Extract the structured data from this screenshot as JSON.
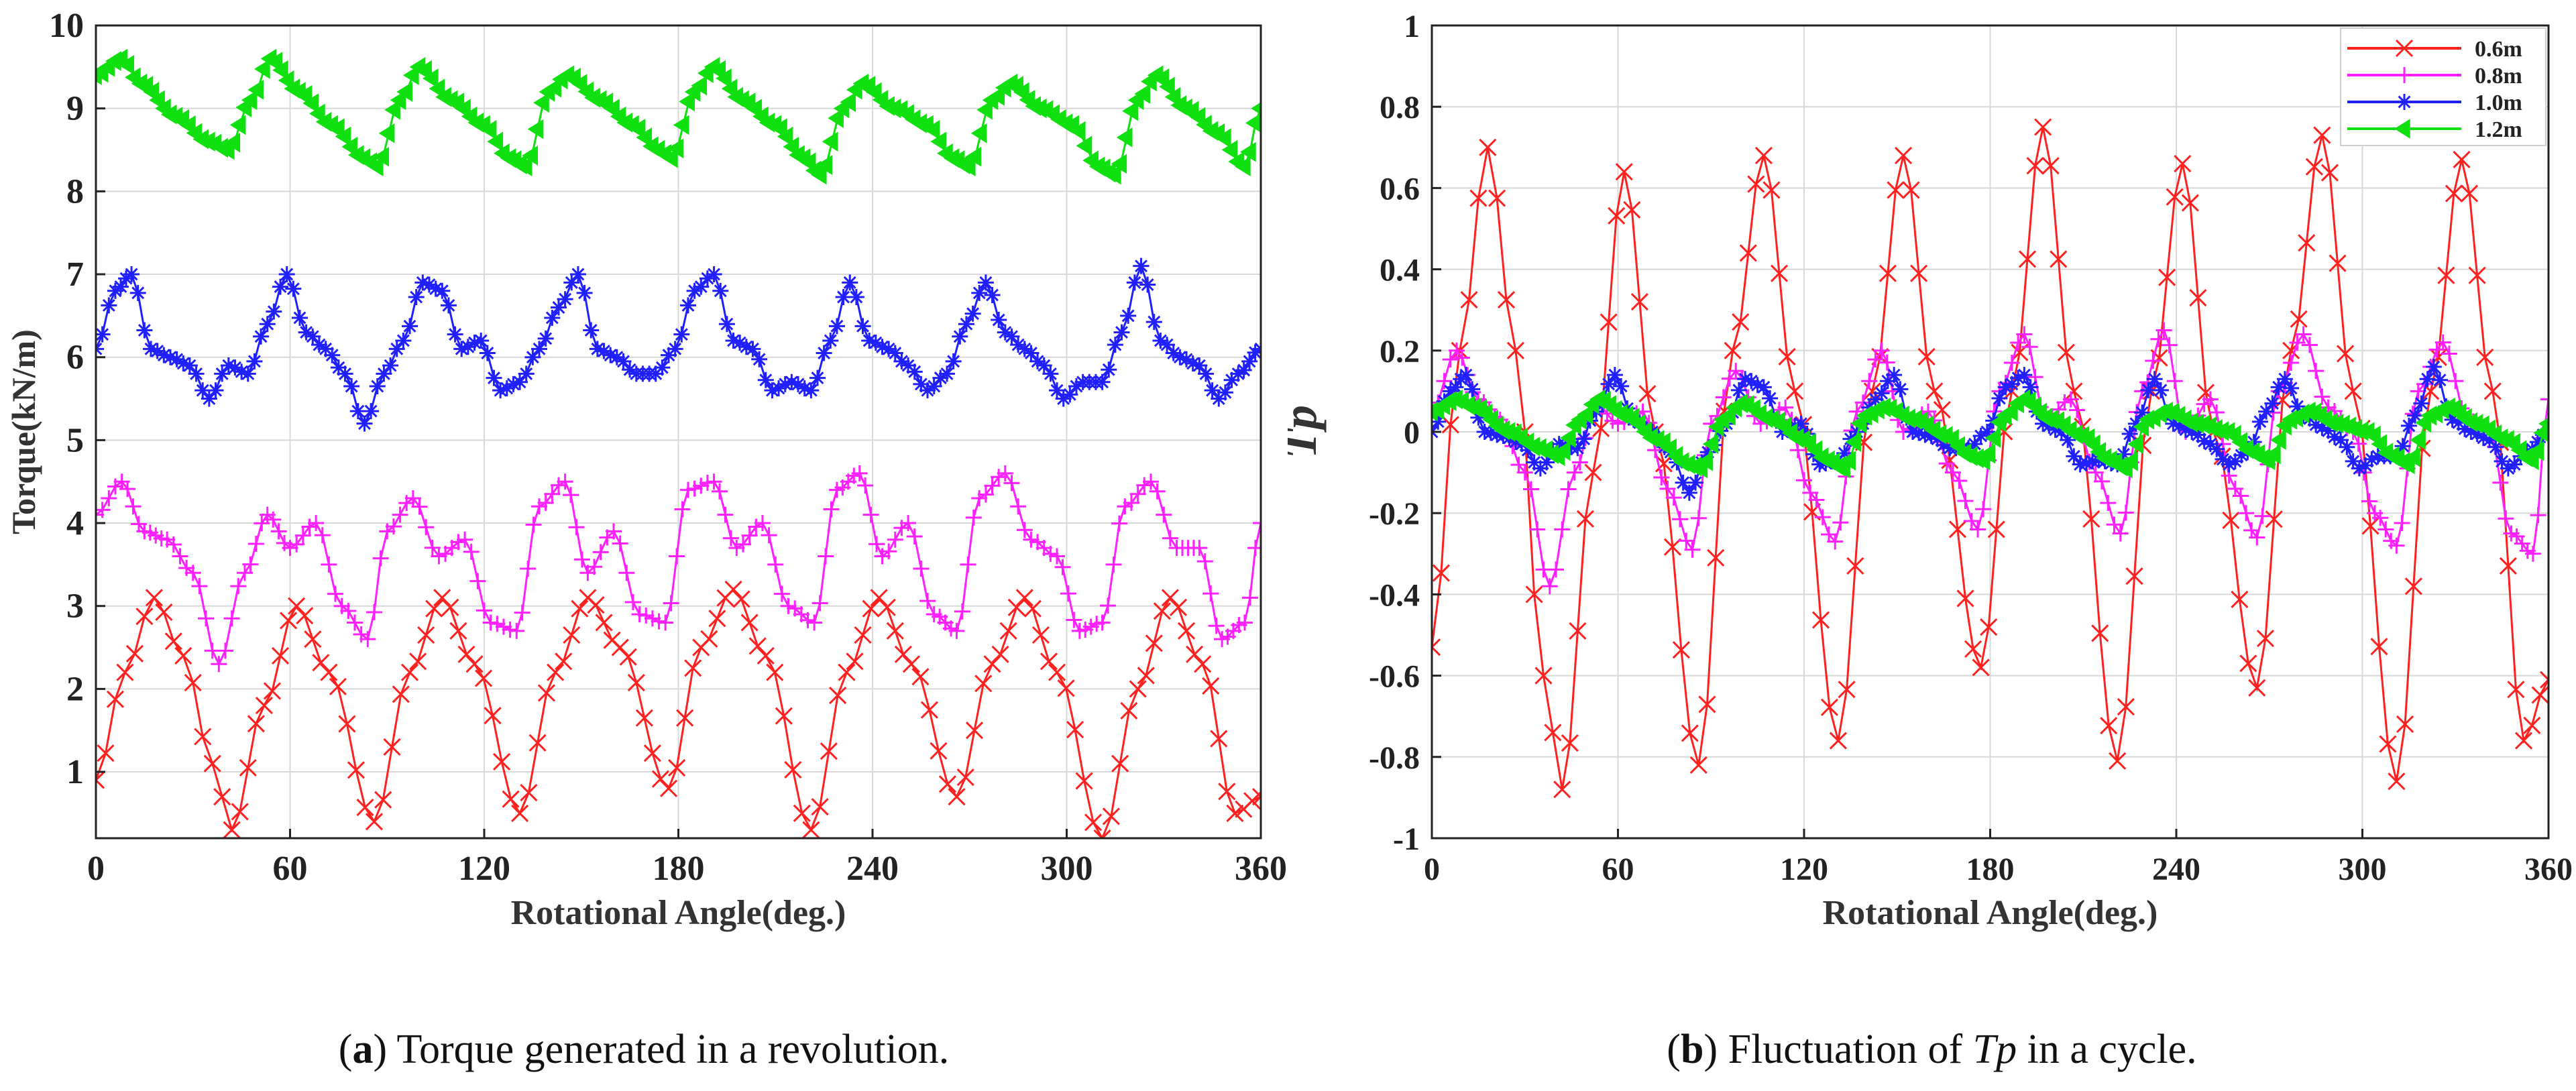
{
  "chart_data": [
    {
      "panel": "a",
      "type": "line",
      "title": "",
      "xlabel": "Rotational Angle(deg.)",
      "ylabel": "Torque(kN/m)",
      "xlim": [
        0,
        360
      ],
      "ylim": [
        0.2,
        10
      ],
      "xticks": [
        0,
        60,
        120,
        180,
        240,
        300,
        360
      ],
      "xtick_labels": [
        "0",
        "60",
        "120",
        "180",
        "240",
        "300",
        "360"
      ],
      "yticks": [
        1,
        2,
        3,
        4,
        5,
        6,
        7,
        8,
        9,
        10
      ],
      "ytick_labels": [
        "1",
        "2",
        "3",
        "4",
        "5",
        "6",
        "7",
        "8",
        "9",
        "10"
      ],
      "grid": true,
      "legend": "none",
      "series": [
        {
          "color": "#ff2020",
          "marker": "x",
          "x": [
            0,
            9,
            18,
            27,
            36,
            42,
            52,
            62,
            72,
            86,
            97,
            107,
            117,
            131,
            142,
            152,
            162,
            177,
            187,
            197,
            207,
            221,
            232,
            242,
            252,
            266,
            277,
            287,
            297,
            311,
            322,
            332,
            342,
            352,
            360
          ],
          "y": [
            0.9,
            2.2,
            3.1,
            2.4,
            1.1,
            0.3,
            1.8,
            3.0,
            2.2,
            0.4,
            2.2,
            3.1,
            2.3,
            0.5,
            2.2,
            3.1,
            2.5,
            0.8,
            2.5,
            3.2,
            2.4,
            0.3,
            2.2,
            3.1,
            2.3,
            0.7,
            2.3,
            3.1,
            2.2,
            0.2,
            2.0,
            3.1,
            2.3,
            0.5,
            0.7
          ]
        },
        {
          "color": "#ff20ff",
          "marker": "+",
          "x": [
            0,
            8,
            15,
            22,
            30,
            38,
            46,
            53,
            60,
            68,
            76,
            84,
            90,
            98,
            106,
            114,
            122,
            130,
            137,
            145,
            152,
            160,
            168,
            176,
            183,
            191,
            198,
            206,
            214,
            222,
            229,
            236,
            243,
            251,
            259,
            266,
            273,
            281,
            289,
            297,
            304,
            311,
            318,
            326,
            334,
            341,
            348,
            355,
            360
          ],
          "y": [
            4.1,
            4.5,
            3.9,
            3.8,
            3.4,
            2.3,
            3.4,
            4.1,
            3.7,
            4.0,
            3.0,
            2.6,
            3.9,
            4.3,
            3.6,
            3.8,
            2.8,
            2.7,
            4.2,
            4.5,
            3.4,
            3.9,
            2.9,
            2.8,
            4.4,
            4.5,
            3.7,
            4.0,
            3.0,
            2.8,
            4.4,
            4.6,
            3.6,
            4.0,
            2.9,
            2.7,
            4.3,
            4.6,
            3.8,
            3.6,
            2.7,
            2.8,
            4.2,
            4.5,
            3.7,
            3.7,
            2.6,
            2.8,
            4.0
          ]
        },
        {
          "color": "#2020ff",
          "marker": "*",
          "x": [
            0,
            6,
            11,
            17,
            23,
            29,
            35,
            41,
            47,
            53,
            59,
            65,
            71,
            77,
            83,
            89,
            95,
            101,
            107,
            113,
            119,
            125,
            131,
            137,
            143,
            149,
            155,
            161,
            167,
            173,
            179,
            185,
            191,
            197,
            203,
            209,
            215,
            221,
            227,
            233,
            239,
            245,
            251,
            257,
            263,
            269,
            275,
            281,
            287,
            293,
            299,
            305,
            311,
            317,
            323,
            329,
            335,
            341,
            347,
            353,
            360
          ],
          "y": [
            6.1,
            6.8,
            7.0,
            6.1,
            6.0,
            5.9,
            5.5,
            5.9,
            5.8,
            6.4,
            7.0,
            6.3,
            6.1,
            5.8,
            5.2,
            5.8,
            6.2,
            6.9,
            6.8,
            6.1,
            6.2,
            5.6,
            5.7,
            6.1,
            6.6,
            7.0,
            6.1,
            6.0,
            5.8,
            5.8,
            6.1,
            6.8,
            7.0,
            6.2,
            6.1,
            5.6,
            5.7,
            5.6,
            6.2,
            6.9,
            6.2,
            6.1,
            5.9,
            5.6,
            5.8,
            6.4,
            6.9,
            6.3,
            6.1,
            5.9,
            5.5,
            5.7,
            5.7,
            6.3,
            7.1,
            6.2,
            6.0,
            5.9,
            5.5,
            5.8,
            6.1
          ]
        },
        {
          "color": "#10e010",
          "marker": "triangle",
          "x": [
            0,
            8,
            14,
            25,
            35,
            41,
            48,
            54,
            63,
            73,
            83,
            87,
            94,
            100,
            110,
            120,
            128,
            133,
            140,
            146,
            156,
            166,
            174,
            178,
            185,
            191,
            200,
            210,
            219,
            224,
            231,
            237,
            247,
            257,
            265,
            270,
            277,
            283,
            292,
            302,
            310,
            315,
            322,
            328,
            337,
            347,
            355,
            360
          ],
          "y": [
            9.4,
            9.6,
            9.3,
            8.9,
            8.6,
            8.5,
            9.1,
            9.6,
            9.2,
            8.8,
            8.4,
            8.3,
            9.1,
            9.5,
            9.1,
            8.8,
            8.4,
            8.3,
            9.2,
            9.4,
            9.1,
            8.8,
            8.5,
            8.4,
            9.2,
            9.5,
            9.1,
            8.8,
            8.4,
            8.2,
            9.0,
            9.3,
            9.0,
            8.8,
            8.4,
            8.3,
            9.1,
            9.3,
            9.0,
            8.8,
            8.3,
            8.2,
            9.1,
            9.4,
            9.0,
            8.7,
            8.3,
            9.0
          ]
        }
      ]
    },
    {
      "panel": "b",
      "type": "line",
      "title": "",
      "xlabel": "Rotational Angle(deg.)",
      "ylabel": "Tp",
      "xlim": [
        0,
        360
      ],
      "ylim": [
        -1,
        1
      ],
      "xticks": [
        0,
        60,
        120,
        180,
        240,
        300,
        360
      ],
      "xtick_labels": [
        "0",
        "60",
        "120",
        "180",
        "240",
        "300",
        "360"
      ],
      "yticks": [
        -1,
        -0.8,
        -0.6,
        -0.4,
        -0.2,
        0,
        0.2,
        0.4,
        0.6,
        0.8,
        1
      ],
      "ytick_labels": [
        "-1",
        "-0.8",
        "-0.6",
        "-0.4",
        "-0.2",
        "0",
        "0.2",
        "0.4",
        "0.6",
        "0.8",
        "1"
      ],
      "grid": true,
      "legend": "top-right",
      "series": [
        {
          "name": "0.6m",
          "color": "#ff2020",
          "marker": "x",
          "x": [
            0,
            9,
            18,
            27,
            36,
            42,
            52,
            62,
            72,
            86,
            97,
            107,
            117,
            131,
            142,
            152,
            162,
            177,
            187,
            197,
            207,
            221,
            232,
            242,
            252,
            266,
            277,
            287,
            297,
            311,
            322,
            332,
            342,
            352,
            360
          ],
          "y": [
            -0.53,
            0.2,
            0.7,
            0.2,
            -0.6,
            -0.88,
            -0.1,
            0.64,
            0.0,
            -0.82,
            0.2,
            0.68,
            0.1,
            -0.76,
            0.1,
            0.68,
            0.1,
            -0.58,
            0.1,
            0.75,
            0.1,
            -0.81,
            0.1,
            0.66,
            0.0,
            -0.63,
            0.2,
            0.73,
            0.1,
            -0.86,
            0.1,
            0.67,
            0.1,
            -0.76,
            -0.61
          ]
        },
        {
          "name": "0.8m",
          "color": "#ff20ff",
          "marker": "+",
          "x": [
            0,
            8,
            15,
            22,
            30,
            38,
            46,
            53,
            60,
            68,
            76,
            84,
            90,
            98,
            106,
            114,
            122,
            130,
            137,
            145,
            152,
            160,
            168,
            176,
            183,
            191,
            198,
            206,
            214,
            222,
            229,
            236,
            243,
            251,
            259,
            266,
            273,
            281,
            289,
            297,
            304,
            311,
            318,
            326,
            334,
            341,
            348,
            355,
            360
          ],
          "y": [
            0.05,
            0.2,
            0.08,
            0.03,
            -0.1,
            -0.38,
            -0.1,
            0.07,
            0.02,
            0.05,
            -0.14,
            -0.29,
            0.02,
            0.15,
            0.02,
            0.06,
            -0.15,
            -0.27,
            0.05,
            0.2,
            0.0,
            0.05,
            -0.1,
            -0.24,
            0.1,
            0.24,
            0.03,
            0.08,
            -0.1,
            -0.25,
            0.1,
            0.25,
            0.0,
            0.08,
            -0.14,
            -0.26,
            0.1,
            0.24,
            0.06,
            0.0,
            -0.2,
            -0.28,
            0.1,
            0.22,
            0.03,
            0.0,
            -0.25,
            -0.3,
            0.08
          ]
        },
        {
          "name": "1.0m",
          "color": "#2020ff",
          "marker": "*",
          "x": [
            0,
            6,
            11,
            17,
            23,
            29,
            35,
            41,
            47,
            53,
            59,
            65,
            71,
            77,
            83,
            89,
            95,
            101,
            107,
            113,
            119,
            125,
            131,
            137,
            143,
            149,
            155,
            161,
            167,
            173,
            179,
            185,
            191,
            197,
            203,
            209,
            215,
            221,
            227,
            233,
            239,
            245,
            251,
            257,
            263,
            269,
            275,
            281,
            287,
            293,
            299,
            305,
            311,
            317,
            323,
            329,
            335,
            341,
            347,
            353,
            360
          ],
          "y": [
            0.0,
            0.1,
            0.14,
            0.0,
            -0.01,
            -0.03,
            -0.09,
            -0.03,
            -0.04,
            0.05,
            0.14,
            0.03,
            0.0,
            -0.05,
            -0.15,
            -0.05,
            0.02,
            0.13,
            0.11,
            0.0,
            0.02,
            -0.08,
            -0.07,
            0.0,
            0.08,
            0.14,
            0.0,
            -0.01,
            -0.04,
            -0.04,
            0.0,
            0.11,
            0.14,
            0.02,
            0.0,
            -0.08,
            -0.07,
            -0.08,
            0.02,
            0.13,
            0.02,
            0.0,
            -0.03,
            -0.08,
            -0.05,
            0.05,
            0.13,
            0.04,
            0.01,
            -0.02,
            -0.09,
            -0.06,
            -0.06,
            0.04,
            0.16,
            0.03,
            0.0,
            -0.02,
            -0.09,
            -0.05,
            0.0
          ]
        },
        {
          "name": "1.2m",
          "color": "#10e010",
          "marker": "triangle",
          "x": [
            0,
            8,
            14,
            25,
            35,
            41,
            48,
            54,
            63,
            73,
            83,
            87,
            94,
            100,
            110,
            120,
            128,
            133,
            140,
            146,
            156,
            166,
            174,
            178,
            185,
            191,
            200,
            210,
            219,
            224,
            231,
            237,
            247,
            257,
            265,
            270,
            277,
            283,
            292,
            302,
            310,
            315,
            322,
            328,
            337,
            347,
            355,
            360
          ],
          "y": [
            0.05,
            0.08,
            0.06,
            0.0,
            -0.04,
            -0.06,
            0.03,
            0.08,
            0.04,
            -0.02,
            -0.08,
            -0.09,
            0.03,
            0.07,
            0.03,
            -0.02,
            -0.07,
            -0.09,
            0.04,
            0.06,
            0.03,
            -0.01,
            -0.06,
            -0.07,
            0.04,
            0.08,
            0.03,
            -0.01,
            -0.07,
            -0.09,
            0.03,
            0.05,
            0.02,
            0.0,
            -0.05,
            -0.07,
            0.03,
            0.05,
            0.02,
            0.0,
            -0.06,
            -0.08,
            0.04,
            0.06,
            0.02,
            -0.02,
            -0.07,
            0.02
          ]
        }
      ]
    }
  ],
  "captions": {
    "a_letter": "a",
    "a_text": "Torque generated in a revolution.",
    "b_letter": "b",
    "b_text_before": "Fluctuation of",
    "b_symbol": "Tp",
    "b_text_after": "in a cycle."
  }
}
